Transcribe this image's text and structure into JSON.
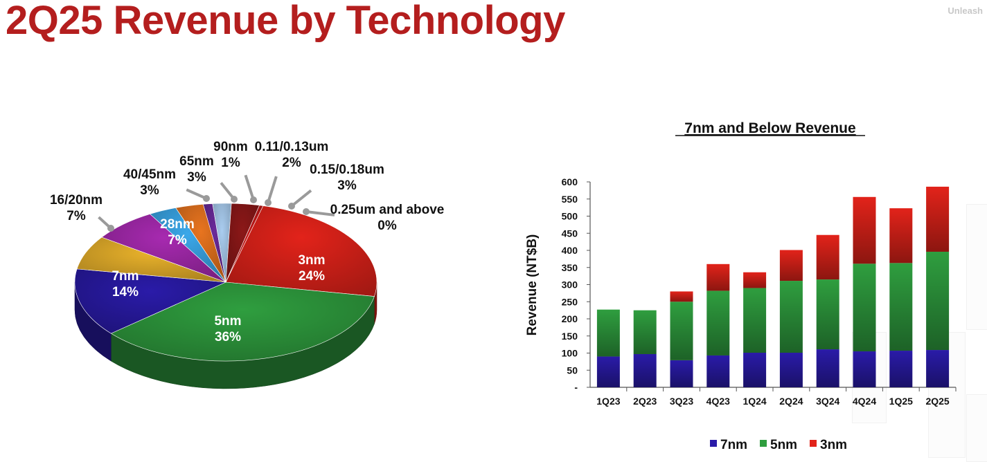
{
  "page": {
    "title": "2Q25 Revenue by Technology",
    "brand": "Unleash"
  },
  "chart_data": [
    {
      "type": "pie",
      "title": "",
      "slices": [
        {
          "label": "3nm",
          "value_label": "24%",
          "value": 24,
          "color": "#e2231a"
        },
        {
          "label": "5nm",
          "value_label": "36%",
          "value": 36,
          "color": "#2f9e3f"
        },
        {
          "label": "7nm",
          "value_label": "14%",
          "value": 14,
          "color": "#2a1ba8"
        },
        {
          "label": "16/20nm",
          "value_label": "7%",
          "value": 7,
          "color": "#e9b22b"
        },
        {
          "label": "28nm",
          "value_label": "7%",
          "value": 7,
          "color": "#a72ab0"
        },
        {
          "label": "40/45nm",
          "value_label": "3%",
          "value": 3,
          "color": "#3ba8ea"
        },
        {
          "label": "65nm",
          "value_label": "3%",
          "value": 3,
          "color": "#e8741f"
        },
        {
          "label": "90nm",
          "value_label": "1%",
          "value": 1,
          "color": "#6a2a9a"
        },
        {
          "label": "0.11/0.13um",
          "value_label": "2%",
          "value": 2,
          "color": "#aacdf0"
        },
        {
          "label": "0.15/0.18um",
          "value_label": "3%",
          "value": 3,
          "color": "#8c1818"
        },
        {
          "label": "0.25um and above",
          "value_label": "0%",
          "value": 0,
          "color": "#c81818"
        }
      ]
    },
    {
      "type": "bar",
      "stacked": true,
      "title": "7nm and Below Revenue",
      "xlabel": "",
      "ylabel": "Revenue (NT$B)",
      "ylim": [
        0,
        600
      ],
      "yticks": [
        "-",
        "50",
        "100",
        "150",
        "200",
        "250",
        "300",
        "350",
        "400",
        "450",
        "500",
        "550",
        "600"
      ],
      "categories": [
        "1Q23",
        "2Q23",
        "3Q23",
        "4Q23",
        "1Q24",
        "2Q24",
        "3Q24",
        "4Q24",
        "1Q25",
        "2Q25"
      ],
      "series": [
        {
          "name": "7nm",
          "color": "#2a1ba8",
          "values": [
            90,
            97,
            79,
            93,
            101,
            101,
            111,
            105,
            107,
            109
          ]
        },
        {
          "name": "5nm",
          "color": "#2f9e3f",
          "values": [
            137,
            128,
            171,
            189,
            189,
            210,
            204,
            256,
            256,
            287
          ]
        },
        {
          "name": "3nm",
          "color": "#e2231a",
          "values": [
            0,
            0,
            30,
            78,
            46,
            90,
            130,
            195,
            160,
            190
          ]
        }
      ],
      "legend_position": "bottom"
    }
  ]
}
